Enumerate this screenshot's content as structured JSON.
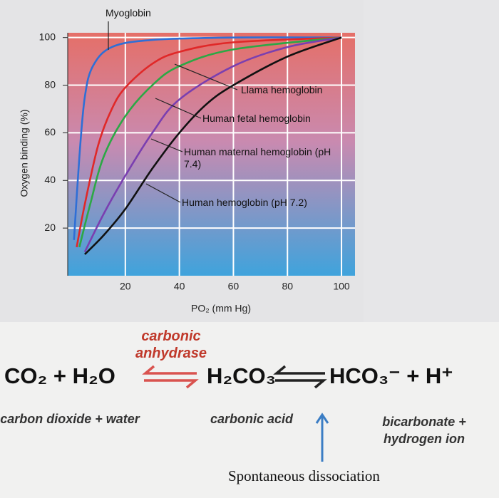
{
  "chart_data": {
    "type": "line",
    "y_label": "Oxygen binding (%)",
    "x_label": "PO₂ (mm Hg)",
    "xlim": [
      0,
      105
    ],
    "ylim": [
      0,
      102
    ],
    "xticks": [
      20,
      40,
      60,
      80,
      100
    ],
    "yticks": [
      20,
      40,
      60,
      80,
      100
    ],
    "grid": true,
    "series": [
      {
        "name": "Myoglobin",
        "color": "#2f6fd6",
        "x": [
          1,
          3,
          5,
          8,
          15,
          30,
          60,
          100
        ],
        "values": [
          15,
          50,
          75,
          88,
          96,
          99,
          100,
          100
        ]
      },
      {
        "name": "Llama hemoglobin",
        "color": "#e02828",
        "x": [
          2,
          5,
          10,
          15,
          20,
          30,
          40,
          60,
          100
        ],
        "values": [
          12,
          30,
          55,
          70,
          79,
          89,
          94,
          98,
          100
        ]
      },
      {
        "name": "Human fetal hemoglobin",
        "color": "#2ca845",
        "x": [
          3,
          7,
          12,
          20,
          30,
          40,
          60,
          100
        ],
        "values": [
          12,
          30,
          50,
          67,
          80,
          88,
          95,
          100
        ]
      },
      {
        "name": "Human maternal hemoglobin (pH 7.4)",
        "color": "#7a3fb0",
        "x": [
          5,
          12,
          20,
          30,
          40,
          60,
          80,
          100
        ],
        "values": [
          10,
          26,
          42,
          60,
          74,
          88,
          96,
          100
        ]
      },
      {
        "name": "Human hemoglobin (pH 7.2)",
        "color": "#111111",
        "x": [
          5,
          12,
          20,
          30,
          40,
          50,
          60,
          80,
          100
        ],
        "values": [
          9,
          17,
          28,
          45,
          60,
          72,
          80,
          92,
          100
        ]
      }
    ]
  },
  "equation": {
    "enzyme": "carbonic anhydrase",
    "left": "CO₂ + H₂O",
    "middle": "H₂CO₃",
    "right": "HCO₃⁻ + H⁺",
    "left_desc": "carbon dioxide + water",
    "middle_desc": "carbonic acid",
    "right_desc": "bicarbonate + hydrogen ion",
    "note": "Spontaneous dissociation"
  }
}
